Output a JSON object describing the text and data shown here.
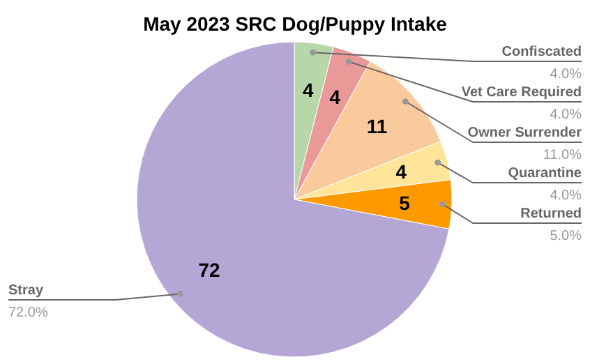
{
  "chart_data": {
    "type": "pie",
    "title": "May 2023 SRC Dog/Puppy Intake",
    "categories": [
      "Confiscated",
      "Vet Care Required",
      "Owner Surrender",
      "Quarantine",
      "Returned",
      "Stray"
    ],
    "values": [
      4,
      4,
      11,
      4,
      5,
      72
    ],
    "colors": [
      "#b7d7a8",
      "#ea9999",
      "#f9cb9c",
      "#ffe599",
      "#ff9900",
      "#b4a7d6"
    ],
    "annotations": [
      "4.0%",
      "4.0%",
      "11.0%",
      "4.0%",
      "5.0%",
      "72.0%"
    ],
    "data_labels": true
  }
}
